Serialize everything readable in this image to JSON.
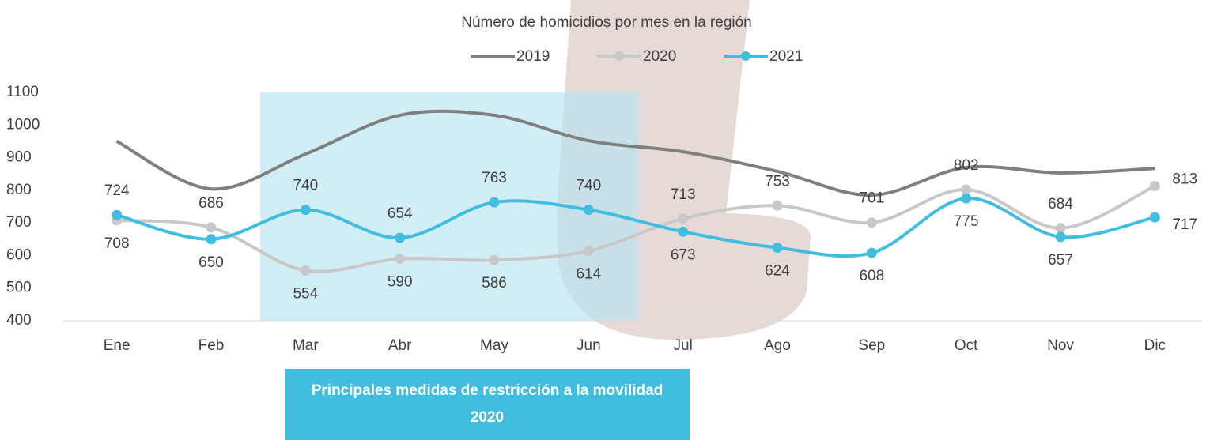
{
  "chart_data": {
    "type": "line",
    "title": "Número de homicidios por mes en la región",
    "categories": [
      "Ene",
      "Feb",
      "Mar",
      "Abr",
      "May",
      "Jun",
      "Jul",
      "Ago",
      "Sep",
      "Oct",
      "Nov",
      "Dic"
    ],
    "series": [
      {
        "name": "2019",
        "color": "#7f7f7f",
        "markers": false,
        "labels": false,
        "values": [
          950,
          804,
          911,
          1030,
          1030,
          952,
          918,
          858,
          785,
          870,
          853,
          867
        ]
      },
      {
        "name": "2020",
        "color": "#c8c8c8",
        "markers": true,
        "labels": true,
        "values": [
          708,
          686,
          554,
          590,
          586,
          614,
          713,
          753,
          701,
          802,
          684,
          813
        ]
      },
      {
        "name": "2021",
        "color": "#41bde0",
        "markers": true,
        "labels": true,
        "values": [
          724,
          650,
          740,
          654,
          763,
          740,
          673,
          624,
          608,
          775,
          657,
          717
        ]
      }
    ],
    "ylim": [
      400,
      1100
    ],
    "yticks": [
      400,
      500,
      600,
      700,
      800,
      900,
      1000,
      1100
    ],
    "smooth": true,
    "legend": "top",
    "annotation": "Principales medidas de restricción a la movilidad 2020"
  }
}
